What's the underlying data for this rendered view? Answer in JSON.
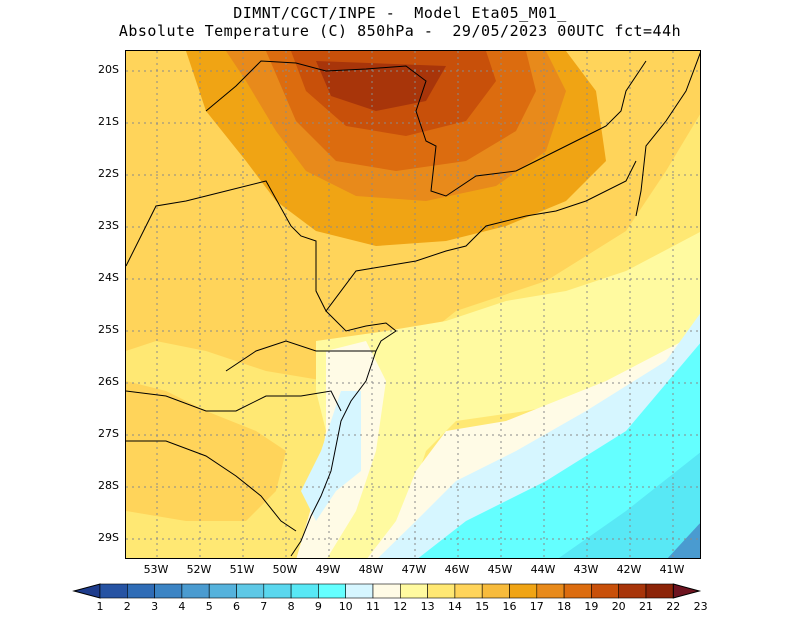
{
  "title": {
    "line1": "DIMNT/CGCT/INPE -  Model Eta05_M01_",
    "line2": "Absolute Temperature (C) 850hPa -  29/05/2023 00UTC fct=44h"
  },
  "map": {
    "lat_ticks": [
      "20S",
      "21S",
      "22S",
      "23S",
      "24S",
      "25S",
      "26S",
      "27S",
      "28S",
      "29S"
    ],
    "lon_ticks": [
      "53W",
      "52W",
      "51W",
      "50W",
      "49W",
      "48W",
      "47W",
      "46W",
      "45W",
      "44W",
      "43W",
      "42W",
      "41W"
    ]
  },
  "colorbar": {
    "labels": [
      "1",
      "2",
      "3",
      "4",
      "5",
      "6",
      "7",
      "8",
      "9",
      "10",
      "11",
      "12",
      "13",
      "14",
      "15",
      "16",
      "17",
      "18",
      "19",
      "20",
      "21",
      "22",
      "23"
    ],
    "colors": [
      "#1e3c8c",
      "#2653a3",
      "#2f6cb6",
      "#3b84c4",
      "#4a9bd0",
      "#55b2dc",
      "#5ec8e6",
      "#5ad7ee",
      "#58e8f5",
      "#64ffff",
      "#d6f6ff",
      "#fffbe6",
      "#fffaa0",
      "#ffe873",
      "#ffd45a",
      "#f7bb3c",
      "#f0a414",
      "#e88a1b",
      "#dc6c0f",
      "#c8500a",
      "#a8350a",
      "#8c2408",
      "#6e1420"
    ]
  }
}
